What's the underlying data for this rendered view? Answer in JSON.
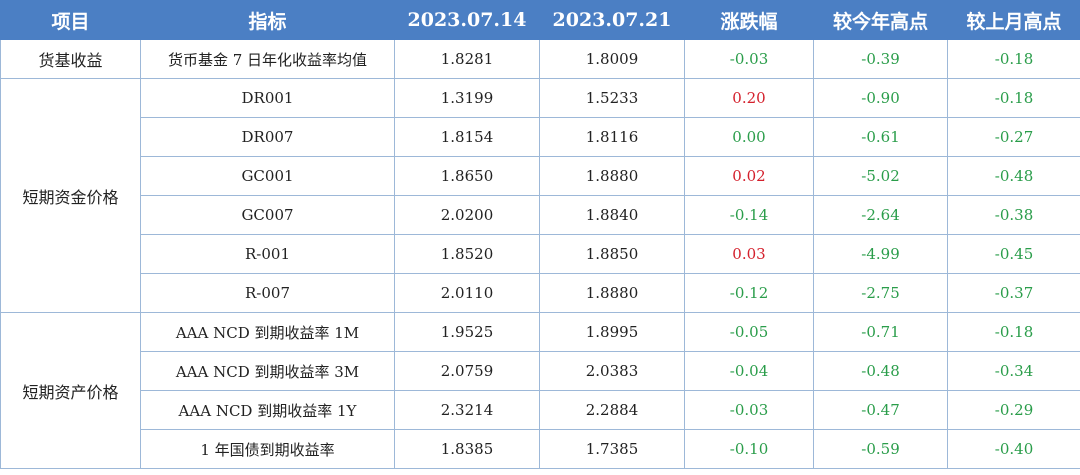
{
  "header": [
    "项目",
    "指标",
    "2023.07.14",
    "2023.07.21",
    "涨跌幅",
    "较今年高点",
    "较上月高点"
  ],
  "groups": [
    {
      "category": "货基收益",
      "rows": [
        {
          "indicator": "货币基金 7 日年化收益率均值",
          "v1": "1.8281",
          "v2": "1.8009",
          "chg": "-0.03",
          "ytd": "-0.39",
          "mom": "-0.18"
        }
      ]
    },
    {
      "category": "短期资金价格",
      "rows": [
        {
          "indicator": "DR001",
          "v1": "1.3199",
          "v2": "1.5233",
          "chg": "0.20",
          "ytd": "-0.90",
          "mom": "-0.18"
        },
        {
          "indicator": "DR007",
          "v1": "1.8154",
          "v2": "1.8116",
          "chg": "0.00",
          "ytd": "-0.61",
          "mom": "-0.27"
        },
        {
          "indicator": "GC001",
          "v1": "1.8650",
          "v2": "1.8880",
          "chg": "0.02",
          "ytd": "-5.02",
          "mom": "-0.48"
        },
        {
          "indicator": "GC007",
          "v1": "2.0200",
          "v2": "1.8840",
          "chg": "-0.14",
          "ytd": "-2.64",
          "mom": "-0.38"
        },
        {
          "indicator": "R-001",
          "v1": "1.8520",
          "v2": "1.8850",
          "chg": "0.03",
          "ytd": "-4.99",
          "mom": "-0.45"
        },
        {
          "indicator": "R-007",
          "v1": "2.0110",
          "v2": "1.8880",
          "chg": "-0.12",
          "ytd": "-2.75",
          "mom": "-0.37"
        }
      ]
    },
    {
      "category": "短期资产价格",
      "rows": [
        {
          "indicator": "AAA NCD 到期收益率 1M",
          "v1": "1.9525",
          "v2": "1.8995",
          "chg": "-0.05",
          "ytd": "-0.71",
          "mom": "-0.18"
        },
        {
          "indicator": "AAA NCD 到期收益率 3M",
          "v1": "2.0759",
          "v2": "2.0383",
          "chg": "-0.04",
          "ytd": "-0.48",
          "mom": "-0.34"
        },
        {
          "indicator": "AAA NCD 到期收益率 1Y",
          "v1": "2.3214",
          "v2": "2.2884",
          "chg": "-0.03",
          "ytd": "-0.47",
          "mom": "-0.29"
        },
        {
          "indicator": "1 年国债到期收益率",
          "v1": "1.8385",
          "v2": "1.7385",
          "chg": "-0.10",
          "ytd": "-0.59",
          "mom": "-0.40"
        }
      ]
    }
  ],
  "colors": {
    "header_bg": "#4b7fc4",
    "positive": "#d4202c",
    "negative": "#2a9d4a",
    "zero": "#2a9d4a"
  }
}
